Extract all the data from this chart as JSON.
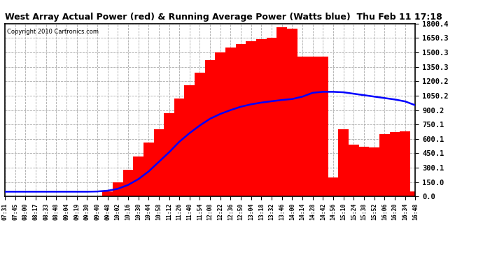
{
  "title": "West Array Actual Power (red) & Running Average Power (Watts blue)  Thu Feb 11 17:18",
  "copyright": "Copyright 2010 Cartronics.com",
  "ylabel_right_ticks": [
    0.0,
    150.0,
    300.1,
    450.1,
    600.1,
    750.1,
    900.2,
    1050.2,
    1200.2,
    1350.3,
    1500.3,
    1650.3,
    1800.4
  ],
  "ymax": 1800.4,
  "ymin": 0.0,
  "bg_color": "#ffffff",
  "plot_bg_color": "#ffffff",
  "grid_color": "#aaaaaa",
  "actual_color": "#ff0000",
  "avg_color": "#0000ff",
  "xtick_labels": [
    "07:31",
    "07:45",
    "08:00",
    "08:17",
    "08:33",
    "08:48",
    "09:04",
    "09:19",
    "09:30",
    "09:40",
    "09:48",
    "10:02",
    "10:16",
    "10:30",
    "10:44",
    "10:58",
    "11:12",
    "11:26",
    "11:40",
    "11:54",
    "12:08",
    "12:22",
    "12:36",
    "12:50",
    "13:04",
    "13:18",
    "13:32",
    "13:46",
    "14:00",
    "14:14",
    "14:28",
    "14:42",
    "14:56",
    "15:10",
    "15:24",
    "15:38",
    "15:52",
    "16:06",
    "16:20",
    "16:34",
    "16:48"
  ],
  "actual_power": [
    0,
    0,
    0,
    0,
    0,
    0,
    0,
    0,
    0,
    0,
    50,
    150,
    280,
    420,
    560,
    700,
    870,
    1020,
    1160,
    1290,
    1420,
    1500,
    1550,
    1590,
    1620,
    1640,
    1650,
    1760,
    1750,
    1460,
    1460,
    1460,
    200,
    700,
    540,
    520,
    510,
    650,
    670,
    680,
    50
  ],
  "running_avg": [
    50,
    50,
    50,
    50,
    50,
    50,
    50,
    50,
    50,
    52,
    60,
    80,
    120,
    180,
    260,
    360,
    460,
    570,
    660,
    740,
    810,
    860,
    900,
    935,
    960,
    978,
    992,
    1005,
    1015,
    1040,
    1080,
    1090,
    1090,
    1085,
    1070,
    1055,
    1040,
    1025,
    1010,
    990,
    950
  ]
}
